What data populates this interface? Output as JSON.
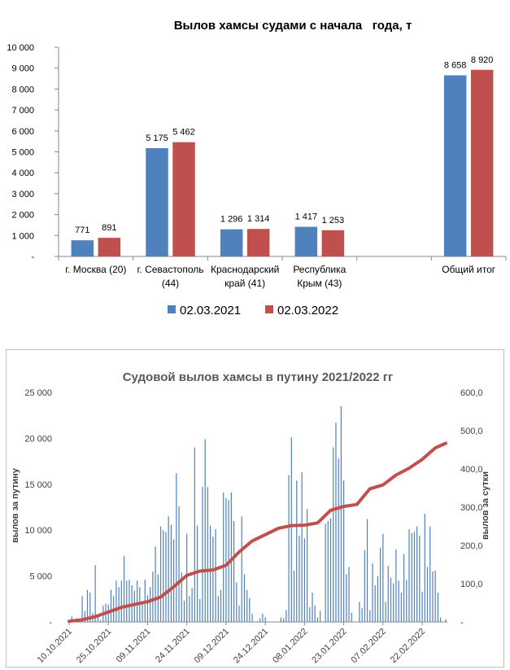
{
  "chart_data": [
    {
      "type": "bar",
      "title": "Вылов хамсы судами с начала   года, т",
      "categories": [
        [
          "г. Москва (20)"
        ],
        [
          "г. Севастополь",
          "(44)"
        ],
        [
          "Краснодарский",
          "край (41)"
        ],
        [
          "Республика",
          "Крым (43)"
        ],
        [
          ""
        ],
        [
          "Общий итог"
        ]
      ],
      "series": [
        {
          "name": "02.03.2021",
          "color": "#4F81BD",
          "values": [
            771,
            5175,
            1296,
            1417,
            null,
            8658
          ]
        },
        {
          "name": "02.03.2022",
          "color": "#C0504D",
          "values": [
            891,
            5462,
            1314,
            1253,
            null,
            8920
          ]
        }
      ],
      "value_labels": [
        [
          "771",
          "5 175",
          "1 296",
          "1 417",
          "",
          "8 658"
        ],
        [
          "891",
          "5 462",
          "1 314",
          "1 253",
          "",
          "8 920"
        ]
      ],
      "ylim": [
        0,
        10000
      ],
      "y_ticks": [
        "-",
        "1 000",
        "2 000",
        "3 000",
        "4 000",
        "5 000",
        "6 000",
        "7 000",
        "8 000",
        "9 000",
        "10 000"
      ],
      "grid": false,
      "legend": "bottom"
    },
    {
      "type": "bar+line",
      "title": "Судовой вылов хамсы в путину 2021/2022 гг",
      "ylabel": "вылов за путину",
      "y2label": "вылов за сутки",
      "ylim": [
        0,
        25000
      ],
      "y2lim": [
        0,
        600
      ],
      "y_ticks": [
        "-",
        "5 000",
        "10 000",
        "15 000",
        "20 000",
        "25 000"
      ],
      "y2_ticks": [
        "-",
        "100,0",
        "200,0",
        "300,0",
        "400,0",
        "500,0",
        "600,0"
      ],
      "x_ticks": [
        "10.10.2021",
        "25.10.2021",
        "09.11.2021",
        "24.11.2021",
        "09.12.2021",
        "24.12.2021",
        "08.01.2022",
        "23.01.2022",
        "07.02.2022",
        "22.02.2022"
      ],
      "x_range_days": [
        0,
        144
      ],
      "bar_color": "#4F81BD",
      "line_color": "#C0504D",
      "daily_bars": {
        "day": [
          0,
          1,
          2,
          3,
          4,
          5,
          6,
          7,
          8,
          9,
          10,
          11,
          12,
          13,
          14,
          15,
          16,
          17,
          18,
          19,
          20,
          21,
          22,
          23,
          24,
          25,
          26,
          27,
          28,
          29,
          30,
          31,
          32,
          33,
          34,
          35,
          36,
          37,
          38,
          39,
          40,
          41,
          42,
          43,
          44,
          45,
          46,
          47,
          48,
          49,
          50,
          51,
          52,
          53,
          54,
          55,
          56,
          57,
          58,
          59,
          60,
          61,
          62,
          63,
          64,
          65,
          66,
          67,
          68,
          69,
          70,
          71,
          72,
          73,
          74,
          75,
          76,
          77,
          78,
          79,
          80,
          81,
          82,
          83,
          84,
          85,
          86,
          87,
          88,
          89,
          90,
          91,
          92,
          93,
          94,
          95,
          96,
          97,
          98,
          99,
          100,
          101,
          102,
          103,
          104,
          105,
          106,
          107,
          108,
          109,
          110,
          111,
          112,
          113,
          114,
          115,
          116,
          117,
          118,
          119,
          120,
          121,
          122,
          123,
          124,
          125,
          126,
          127,
          128,
          129,
          130,
          131,
          132,
          133,
          134,
          135,
          136,
          137,
          138,
          139,
          140,
          141,
          142,
          143,
          144
        ],
        "value": [
          200,
          600,
          300,
          400,
          200,
          2800,
          1200,
          3500,
          3200,
          1000,
          6200,
          600,
          200,
          1800,
          2000,
          1900,
          3500,
          2800,
          4500,
          3800,
          4500,
          7200,
          4500,
          4600,
          4000,
          3400,
          4500,
          3800,
          2000,
          4600,
          2900,
          3800,
          5500,
          8200,
          5200,
          10400,
          10000,
          9800,
          11500,
          10600,
          9000,
          16200,
          12600,
          5400,
          2300,
          9600,
          2800,
          3700,
          19000,
          10500,
          2500,
          14700,
          19900,
          14700,
          10500,
          9300,
          10100,
          2800,
          3500,
          14100,
          13500,
          13300,
          14100,
          11000,
          4300,
          1800,
          11500,
          5200,
          3500,
          2600,
          900,
          0,
          100,
          400,
          900,
          500,
          0,
          0,
          0,
          0,
          0,
          500,
          400,
          1300,
          16000,
          20100,
          5600,
          15400,
          9400,
          16300,
          9100,
          12300,
          1600,
          3200,
          1800,
          500,
          1200,
          0,
          10700,
          11000,
          11300,
          19000,
          21700,
          17800,
          23500,
          15400,
          5200,
          6000,
          1000,
          0,
          0,
          2200,
          1500,
          7800,
          11200,
          1300,
          6400,
          4000,
          5000,
          8100,
          9600,
          2200,
          6100,
          4800,
          4200,
          7900,
          4500,
          3200,
          7400,
          4600,
          10100,
          9700,
          9800,
          10400,
          9400,
          3300,
          11800,
          6000,
          10400,
          5500,
          5600,
          3200,
          500,
          0,
          300
        ]
      },
      "cumulative_line": {
        "day": [
          0,
          5,
          10,
          15,
          20,
          25,
          30,
          35,
          40,
          45,
          50,
          55,
          60,
          65,
          70,
          75,
          80,
          85,
          90,
          95,
          100,
          105,
          110,
          115,
          120,
          125,
          130,
          135,
          140,
          144
        ],
        "value": [
          2,
          6,
          14,
          26,
          38,
          46,
          53,
          65,
          92,
          122,
          133,
          136,
          148,
          183,
          212,
          228,
          245,
          252,
          253,
          259,
          292,
          302,
          307,
          348,
          358,
          384,
          402,
          425,
          455,
          467
        ]
      }
    }
  ]
}
